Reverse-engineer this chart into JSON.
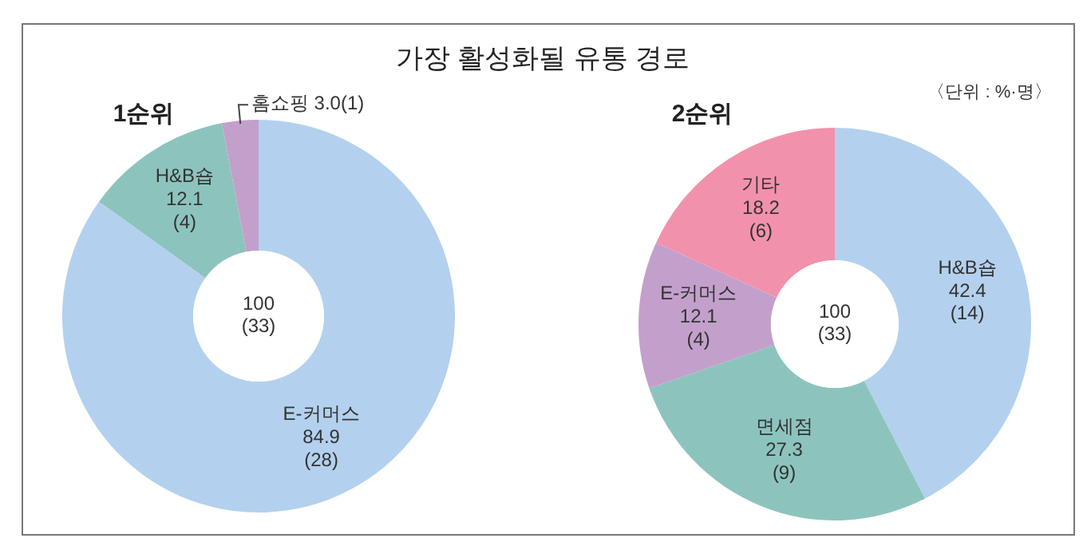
{
  "chart_data": [
    {
      "type": "donut",
      "title": "가장 활성화될 유통 경로",
      "subtitle": "1순위",
      "categories": [
        "E-커머스",
        "H&B숍",
        "홈쇼핑"
      ],
      "values": [
        84.9,
        12.1,
        3.0
      ],
      "colors": [
        "#b3d1ee",
        "#8cc4bd",
        "#c3a0cb"
      ],
      "value_labels": [
        "84.9\n(28)",
        "12.1\n(4)",
        "3.0(1)"
      ],
      "annotations": [
        "100\n(33)"
      ]
    },
    {
      "type": "donut",
      "subtitle": "2순위",
      "categories": [
        "H&B숍",
        "면세점",
        "E-커머스",
        "기타"
      ],
      "values": [
        42.4,
        27.3,
        12.1,
        18.2
      ],
      "colors": [
        "#b3d1ee",
        "#8cc4bd",
        "#c3a0cb",
        "#f291ab"
      ],
      "value_labels": [
        "42.4\n(14)",
        "27.3\n(9)",
        "12.1\n(4)",
        "18.2\n(6)"
      ],
      "annotations": [
        "100\n(33)",
        "〈단위 : %·명〉"
      ]
    }
  ]
}
